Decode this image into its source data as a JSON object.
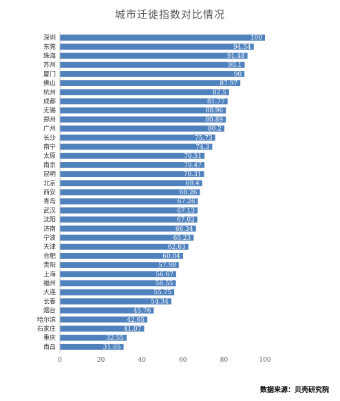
{
  "chart_data": {
    "type": "bar",
    "orientation": "horizontal",
    "title": "城市迁徙指数对比情况",
    "categories": [
      "深圳",
      "东莞",
      "珠海",
      "苏州",
      "厦门",
      "佛山",
      "杭州",
      "成都",
      "无锡",
      "郑州",
      "广州",
      "长沙",
      "南宁",
      "太原",
      "南京",
      "昆明",
      "北京",
      "西安",
      "青岛",
      "武汉",
      "沈阳",
      "济南",
      "宁波",
      "天津",
      "合肥",
      "贵阳",
      "上海",
      "福州",
      "大连",
      "长春",
      "烟台",
      "哈尔滨",
      "石家庄",
      "重庆",
      "南昌"
    ],
    "values": [
      100,
      94.54,
      91.48,
      90.1,
      90,
      87.97,
      82.5,
      81.77,
      80.96,
      80.89,
      80.2,
      75.73,
      74.3,
      70.51,
      70.47,
      70.31,
      69.4,
      68.26,
      67.26,
      67.13,
      67.02,
      66.34,
      65.23,
      62.63,
      60.04,
      57.98,
      56.67,
      56.55,
      55.75,
      54.34,
      45.76,
      42.65,
      41.07,
      32.55,
      31.05
    ],
    "value_labels": [
      "100",
      "94.54",
      "91.48",
      "90.1",
      "90",
      "87.97",
      "82.5",
      "81.77",
      "80.96",
      "80.89",
      "80.2",
      "75.73",
      "74.3",
      "70.51",
      "70.47",
      "70.31",
      "69.4",
      "68.26",
      "67.26",
      "67.13",
      "67.02",
      "66.34",
      "65.23",
      "62.63",
      "60.04",
      "57.98",
      "56.67",
      "56.55",
      "55.75",
      "54.34",
      "45.76",
      "42.65",
      "41.07",
      "32.55",
      "31.05"
    ],
    "xlim": [
      0,
      100
    ],
    "xticks": [
      "0",
      "20",
      "40",
      "60",
      "80",
      "100"
    ],
    "bar_color": "#4f81bd",
    "label_color": "#ffffff",
    "grid": false,
    "legend": "none"
  },
  "source": "数据来源：贝壳研究院"
}
